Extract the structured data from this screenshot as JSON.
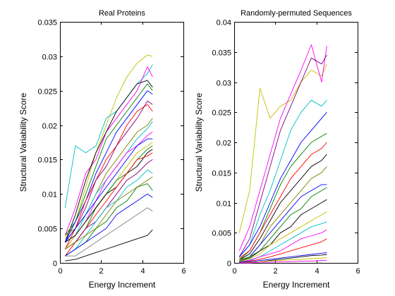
{
  "chart_data": [
    {
      "type": "line",
      "title": "Real Proteins",
      "xlabel": "Energy Increment",
      "ylabel": "Structural Variability Score",
      "xlim": [
        0,
        6
      ],
      "ylim": [
        0,
        0.035
      ],
      "xticks": [
        "0",
        "2",
        "4",
        "6"
      ],
      "yticks": [
        "0",
        "0.005",
        "0.01",
        "0.015",
        "0.02",
        "0.025",
        "0.03",
        "0.035"
      ],
      "grid": false,
      "legend": "none",
      "x": [
        0.25,
        0.75,
        1.25,
        1.75,
        2.25,
        2.75,
        3.25,
        3.75,
        4.25,
        4.5
      ],
      "series": [
        {
          "color": "#c0c000",
          "values": [
            0.0035,
            0.006,
            0.011,
            0.016,
            0.02,
            0.024,
            0.027,
            0.029,
            0.0302,
            0.03
          ]
        },
        {
          "color": "#00c0c0",
          "values": [
            0.008,
            0.017,
            0.016,
            0.017,
            0.021,
            0.022,
            0.024,
            0.026,
            0.0275,
            0.0288
          ]
        },
        {
          "color": "#ff00ff",
          "values": [
            0.004,
            0.008,
            0.013,
            0.015,
            0.019,
            0.021,
            0.023,
            0.025,
            0.0285,
            0.027
          ]
        },
        {
          "color": "#000000",
          "values": [
            0.003,
            0.007,
            0.012,
            0.016,
            0.019,
            0.022,
            0.024,
            0.026,
            0.0265,
            0.0255
          ]
        },
        {
          "color": "#008000",
          "values": [
            0.004,
            0.006,
            0.01,
            0.014,
            0.018,
            0.02,
            0.022,
            0.024,
            0.026,
            0.025
          ]
        },
        {
          "color": "#0000ff",
          "values": [
            0.003,
            0.006,
            0.009,
            0.013,
            0.016,
            0.019,
            0.021,
            0.023,
            0.025,
            0.0245
          ]
        },
        {
          "color": "#ff0000",
          "values": [
            0.002,
            0.005,
            0.009,
            0.012,
            0.015,
            0.017,
            0.02,
            0.022,
            0.023,
            0.022
          ]
        },
        {
          "color": "#800080",
          "values": [
            0.003,
            0.005,
            0.008,
            0.012,
            0.014,
            0.017,
            0.019,
            0.021,
            0.0235,
            0.023
          ]
        },
        {
          "color": "#808000",
          "values": [
            0.004,
            0.005,
            0.007,
            0.01,
            0.013,
            0.015,
            0.017,
            0.019,
            0.02,
            0.021
          ]
        },
        {
          "color": "#00c0c0",
          "values": [
            0.003,
            0.004,
            0.007,
            0.01,
            0.012,
            0.014,
            0.016,
            0.018,
            0.0195,
            0.0205
          ]
        },
        {
          "color": "#ff00ff",
          "values": [
            0.002,
            0.004,
            0.006,
            0.009,
            0.012,
            0.014,
            0.016,
            0.017,
            0.0185,
            0.019
          ]
        },
        {
          "color": "#0000ff",
          "values": [
            0.003,
            0.005,
            0.007,
            0.009,
            0.011,
            0.013,
            0.015,
            0.017,
            0.018,
            0.018
          ]
        },
        {
          "color": "#c0c000",
          "values": [
            0.002,
            0.004,
            0.006,
            0.008,
            0.01,
            0.012,
            0.014,
            0.016,
            0.017,
            0.0175
          ]
        },
        {
          "color": "#008000",
          "values": [
            0.002,
            0.003,
            0.005,
            0.008,
            0.01,
            0.012,
            0.013,
            0.015,
            0.0165,
            0.017
          ]
        },
        {
          "color": "#000000",
          "values": [
            0.003,
            0.004,
            0.006,
            0.008,
            0.01,
            0.011,
            0.013,
            0.014,
            0.016,
            0.0165
          ]
        },
        {
          "color": "#ff0000",
          "values": [
            0.001,
            0.003,
            0.005,
            0.007,
            0.009,
            0.011,
            0.013,
            0.015,
            0.0155,
            0.016
          ]
        },
        {
          "color": "#800080",
          "values": [
            0.002,
            0.003,
            0.005,
            0.006,
            0.008,
            0.01,
            0.012,
            0.013,
            0.0145,
            0.015
          ]
        },
        {
          "color": "#00c0c0",
          "values": [
            0.001,
            0.002,
            0.004,
            0.006,
            0.008,
            0.009,
            0.011,
            0.012,
            0.0135,
            0.013
          ]
        },
        {
          "color": "#808000",
          "values": [
            0.002,
            0.003,
            0.004,
            0.005,
            0.007,
            0.009,
            0.01,
            0.011,
            0.012,
            0.0125
          ]
        },
        {
          "color": "#008000",
          "values": [
            0.001,
            0.002,
            0.003,
            0.005,
            0.006,
            0.008,
            0.009,
            0.011,
            0.0115,
            0.0105
          ]
        },
        {
          "color": "#0000ff",
          "values": [
            0.001,
            0.002,
            0.003,
            0.004,
            0.005,
            0.007,
            0.008,
            0.009,
            0.01,
            0.0095
          ]
        },
        {
          "color": "#808080",
          "values": [
            0.001,
            0.001,
            0.002,
            0.003,
            0.004,
            0.005,
            0.006,
            0.007,
            0.008,
            0.0075
          ]
        },
        {
          "color": "#000000",
          "values": [
            0.0003,
            0.0005,
            0.001,
            0.0015,
            0.002,
            0.0025,
            0.003,
            0.0035,
            0.004,
            0.0048
          ]
        }
      ]
    },
    {
      "type": "line",
      "title": "Randomly-permuted Sequences",
      "xlabel": "Energy Increment",
      "ylabel": "Structural Variability Score",
      "xlim": [
        0,
        6
      ],
      "ylim": [
        0,
        0.04
      ],
      "xticks": [
        "0",
        "2",
        "4",
        "6"
      ],
      "yticks": [
        "0",
        "0.005",
        "0.01",
        "0.015",
        "0.02",
        "0.025",
        "0.03",
        "0.035",
        "0.04"
      ],
      "grid": false,
      "legend": "none",
      "x": [
        0.25,
        0.75,
        1.25,
        1.75,
        2.25,
        2.75,
        3.25,
        3.75,
        4.25,
        4.5
      ],
      "series": [
        {
          "color": "#c0c000",
          "values": [
            0.005,
            0.012,
            0.029,
            0.024,
            0.026,
            0.027,
            0.03,
            0.032,
            0.031,
            0.033
          ]
        },
        {
          "color": "#ff00ff",
          "values": [
            0.002,
            0.006,
            0.012,
            0.018,
            0.024,
            0.028,
            0.032,
            0.0362,
            0.03,
            0.036
          ]
        },
        {
          "color": "#800080",
          "values": [
            0.001,
            0.004,
            0.01,
            0.016,
            0.022,
            0.026,
            0.03,
            0.034,
            0.033,
            0.0345
          ]
        },
        {
          "color": "#00c0c0",
          "values": [
            0.001,
            0.003,
            0.008,
            0.012,
            0.017,
            0.022,
            0.025,
            0.027,
            0.026,
            0.027
          ]
        },
        {
          "color": "#0000ff",
          "values": [
            0.001,
            0.003,
            0.006,
            0.01,
            0.014,
            0.017,
            0.02,
            0.022,
            0.024,
            0.025
          ]
        },
        {
          "color": "#008000",
          "values": [
            0.0005,
            0.002,
            0.005,
            0.009,
            0.013,
            0.016,
            0.018,
            0.02,
            0.021,
            0.0215
          ]
        },
        {
          "color": "#ff0000",
          "values": [
            0.0008,
            0.002,
            0.005,
            0.008,
            0.011,
            0.014,
            0.016,
            0.018,
            0.019,
            0.02
          ]
        },
        {
          "color": "#000000",
          "values": [
            0.0005,
            0.0015,
            0.004,
            0.007,
            0.01,
            0.012,
            0.014,
            0.016,
            0.017,
            0.018
          ]
        },
        {
          "color": "#808000",
          "values": [
            0.0005,
            0.001,
            0.003,
            0.006,
            0.008,
            0.01,
            0.012,
            0.014,
            0.015,
            0.016
          ]
        },
        {
          "color": "#0000ff",
          "values": [
            0.0003,
            0.001,
            0.003,
            0.005,
            0.007,
            0.009,
            0.011,
            0.012,
            0.013,
            0.013
          ]
        },
        {
          "color": "#008000",
          "values": [
            0.0003,
            0.001,
            0.002,
            0.004,
            0.006,
            0.008,
            0.009,
            0.011,
            0.012,
            0.0125
          ]
        },
        {
          "color": "#000000",
          "values": [
            0.0002,
            0.0008,
            0.002,
            0.003,
            0.005,
            0.006,
            0.008,
            0.009,
            0.01,
            0.0105
          ]
        },
        {
          "color": "#c0c000",
          "values": [
            0.0002,
            0.0007,
            0.0015,
            0.003,
            0.004,
            0.005,
            0.006,
            0.007,
            0.008,
            0.0085
          ]
        },
        {
          "color": "#00c0c0",
          "values": [
            0.0001,
            0.0005,
            0.001,
            0.002,
            0.003,
            0.004,
            0.005,
            0.006,
            0.0065,
            0.0068
          ]
        },
        {
          "color": "#ff00ff",
          "values": [
            0.0001,
            0.0004,
            0.001,
            0.0015,
            0.002,
            0.003,
            0.004,
            0.0045,
            0.005,
            0.0055
          ]
        },
        {
          "color": "#ff0000",
          "values": [
            0.0001,
            0.0003,
            0.0006,
            0.001,
            0.0015,
            0.002,
            0.0025,
            0.003,
            0.0035,
            0.004
          ]
        },
        {
          "color": "#0000ff",
          "values": [
            0.0001,
            0.0002,
            0.0004,
            0.0006,
            0.0008,
            0.001,
            0.0012,
            0.0014,
            0.0016,
            0.0017
          ]
        },
        {
          "color": "#000000",
          "values": [
            0.0,
            0.0001,
            0.0002,
            0.0004,
            0.0006,
            0.0008,
            0.001,
            0.0012,
            0.0013,
            0.0014
          ]
        },
        {
          "color": "#c0c000",
          "values": [
            0.0,
            0.0001,
            0.0002,
            0.0003,
            0.0004,
            0.0005,
            0.0006,
            0.0007,
            0.0008,
            0.0009
          ]
        },
        {
          "color": "#ff00ff",
          "values": [
            0.0,
            0.0,
            0.0001,
            0.0001,
            0.0002,
            0.0002,
            0.0003,
            0.0003,
            0.0004,
            0.0004
          ]
        }
      ]
    }
  ]
}
